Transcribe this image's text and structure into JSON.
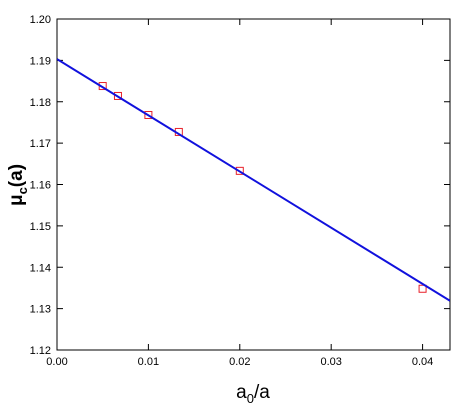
{
  "chart_data": {
    "type": "scatter",
    "xlabel": {
      "main": "a",
      "sub": "0",
      "rest": "/a"
    },
    "ylabel": {
      "main": "μ",
      "sub": "c",
      "rest": "(a)"
    },
    "xlim": [
      0,
      0.043
    ],
    "ylim": [
      1.12,
      1.2
    ],
    "xticks": [
      {
        "value": 0,
        "label": "0.00"
      },
      0.01,
      0.02,
      0.03,
      0.04
    ],
    "yticks": [
      1.12,
      1.13,
      1.14,
      1.15,
      1.16,
      1.17,
      1.18,
      1.19,
      {
        "value": 1.2,
        "label": "1.20"
      }
    ],
    "series": [
      {
        "mode": "markers",
        "color": "#e8202a",
        "x": [
          0.005,
          0.00667,
          0.01,
          0.01333,
          0.02,
          0.04
        ],
        "values": [
          1.1838,
          1.1814,
          1.1768,
          1.1727,
          1.1633,
          1.1348
        ]
      },
      {
        "mode": "line",
        "color": "#1111dd",
        "x": [
          0,
          0.043
        ],
        "values": [
          1.1903,
          1.1319
        ]
      }
    ]
  }
}
